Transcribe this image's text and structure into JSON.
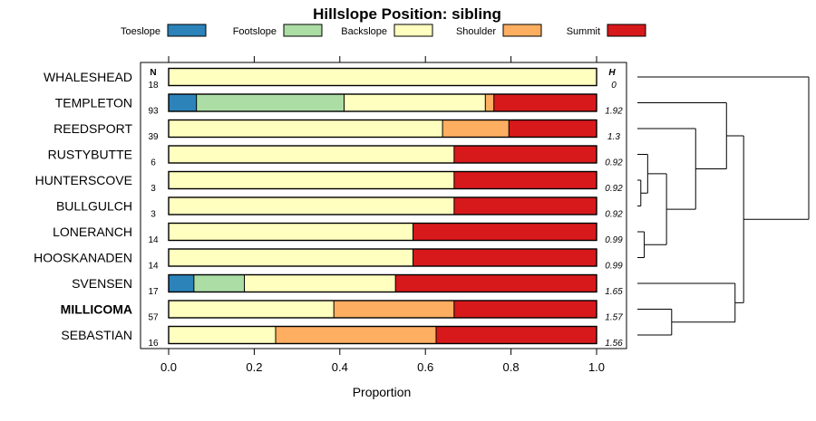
{
  "chart_data": {
    "type": "bar",
    "orientation": "horizontal",
    "stacked": true,
    "title": "Hillslope Position: sibling",
    "xlabel": "Proportion",
    "xlim": [
      0,
      1
    ],
    "xticks": [
      "0.0",
      "0.2",
      "0.4",
      "0.6",
      "0.8",
      "1.0"
    ],
    "xtick_values": [
      0,
      0.2,
      0.4,
      0.6,
      0.8,
      1.0
    ],
    "n_header": "N",
    "h_header": "H",
    "legend": [
      {
        "name": "Toeslope",
        "color": "#2b83ba"
      },
      {
        "name": "Footslope",
        "color": "#abdda4"
      },
      {
        "name": "Backslope",
        "color": "#ffffbf"
      },
      {
        "name": "Shoulder",
        "color": "#fdae61"
      },
      {
        "name": "Summit",
        "color": "#d7191c"
      }
    ],
    "rows": [
      {
        "label": "WHALESHEAD",
        "n": "18",
        "h": "0",
        "bold": false,
        "values": [
          0,
          0,
          1.0,
          0,
          0
        ]
      },
      {
        "label": "TEMPLETON",
        "n": "93",
        "h": "1.92",
        "bold": false,
        "values": [
          0.065,
          0.345,
          0.33,
          0.02,
          0.24
        ]
      },
      {
        "label": "REEDSPORT",
        "n": "39",
        "h": "1.3",
        "bold": false,
        "values": [
          0,
          0,
          0.64,
          0.155,
          0.205
        ]
      },
      {
        "label": "RUSTYBUTTE",
        "n": "6",
        "h": "0.92",
        "bold": false,
        "values": [
          0,
          0,
          0.667,
          0,
          0.333
        ]
      },
      {
        "label": "HUNTERSCOVE",
        "n": "3",
        "h": "0.92",
        "bold": false,
        "values": [
          0,
          0,
          0.667,
          0,
          0.333
        ]
      },
      {
        "label": "BULLGULCH",
        "n": "3",
        "h": "0.92",
        "bold": false,
        "values": [
          0,
          0,
          0.667,
          0,
          0.333
        ]
      },
      {
        "label": "LONERANCH",
        "n": "14",
        "h": "0.99",
        "bold": false,
        "values": [
          0,
          0,
          0.571,
          0,
          0.429
        ]
      },
      {
        "label": "HOOSKANADEN",
        "n": "14",
        "h": "0.99",
        "bold": false,
        "values": [
          0,
          0,
          0.571,
          0,
          0.429
        ]
      },
      {
        "label": "SVENSEN",
        "n": "17",
        "h": "1.65",
        "bold": false,
        "values": [
          0.059,
          0.118,
          0.353,
          0,
          0.47
        ]
      },
      {
        "label": "MILLICOMA",
        "n": "57",
        "h": "1.57",
        "bold": true,
        "values": [
          0,
          0,
          0.386,
          0.281,
          0.333
        ]
      },
      {
        "label": "SEBASTIAN",
        "n": "16",
        "h": "1.56",
        "bold": false,
        "values": [
          0,
          0,
          0.25,
          0.375,
          0.375
        ]
      }
    ],
    "dendrogram": {
      "leaf_order": [
        "WHALESHEAD",
        "TEMPLETON",
        "REEDSPORT",
        "RUSTYBUTTE",
        "HUNTERSCOVE",
        "BULLGULCH",
        "LONERANCH",
        "HOOSKANADEN",
        "SVENSEN",
        "MILLICOMA",
        "SEBASTIAN"
      ],
      "merges": [
        {
          "a": "HUNTERSCOVE",
          "b": "BULLGULCH",
          "height": 0.02
        },
        {
          "a": "RUSTYBUTTE",
          "b": "m0",
          "height": 0.06
        },
        {
          "a": "LONERANCH",
          "b": "HOOSKANADEN",
          "height": 0.04
        },
        {
          "a": "m1",
          "b": "m2",
          "height": 0.17
        },
        {
          "a": "REEDSPORT",
          "b": "m3",
          "height": 0.34
        },
        {
          "a": "TEMPLETON",
          "b": "m4",
          "height": 0.52
        },
        {
          "a": "MILLICOMA",
          "b": "SEBASTIAN",
          "height": 0.2
        },
        {
          "a": "SVENSEN",
          "b": "m6",
          "height": 0.57
        },
        {
          "a": "m5",
          "b": "m7",
          "height": 0.62
        },
        {
          "a": "WHALESHEAD",
          "b": "m8",
          "height": 1.0
        }
      ]
    }
  }
}
